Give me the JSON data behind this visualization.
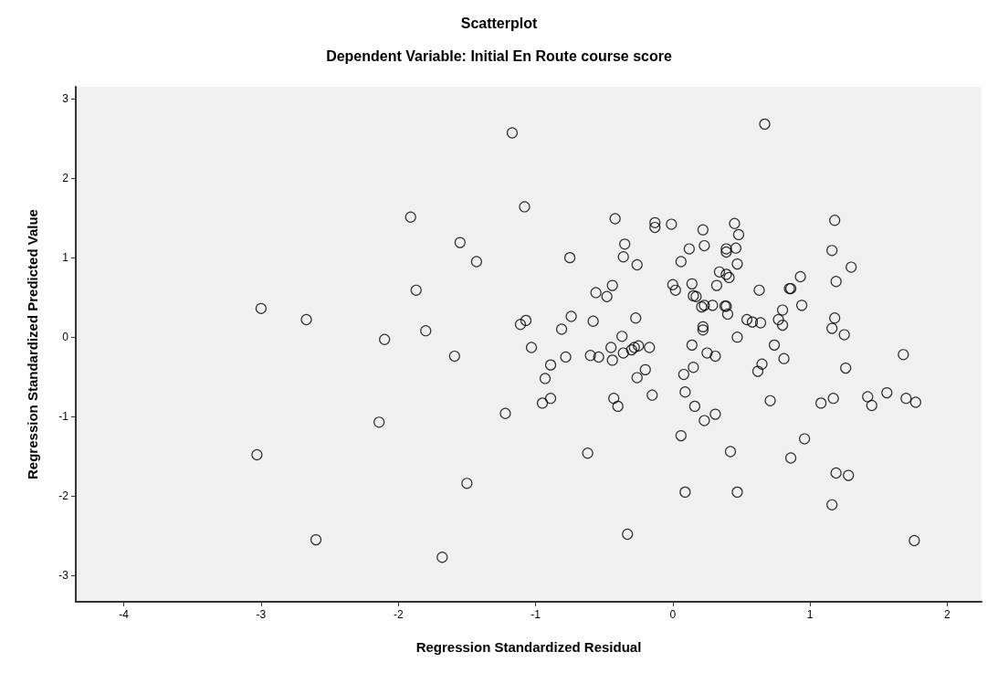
{
  "chart_data": {
    "type": "scatter",
    "title": "Scatterplot",
    "subtitle": "Dependent Variable: Initial En Route course score",
    "xlabel": "Regression Standardized Residual",
    "ylabel": "Regression Standardized Predicted Value",
    "xlim": [
      -4.35,
      2.25
    ],
    "ylim": [
      -3.33,
      3.15
    ],
    "xticks": [
      -4,
      -3,
      -2,
      -1,
      0,
      1,
      2
    ],
    "yticks": [
      -3,
      -2,
      -1,
      0,
      1,
      2,
      3
    ],
    "grid": false,
    "marker": "circle",
    "series": [
      {
        "color": "#000000",
        "x": [
          -3.0,
          -2.67,
          -1.91,
          -1.87,
          -2.1,
          -2.14,
          -3.03,
          -2.6,
          -1.17,
          -1.08,
          -0.42,
          -0.13,
          -0.13,
          -0.01,
          -1.55,
          -1.43,
          -0.35,
          -0.36,
          -0.26,
          -0.75,
          -1.8,
          -1.59,
          -0.44,
          -0.56,
          -0.48,
          -1.11,
          -1.07,
          -0.74,
          -0.81,
          -0.58,
          -0.27,
          -0.37,
          -1.03,
          -0.45,
          -0.6,
          -0.54,
          -0.44,
          -0.36,
          -0.3,
          -0.28,
          -0.25,
          -0.17,
          -0.78,
          -0.89,
          -0.93,
          -0.2,
          -0.26,
          -0.89,
          -0.95,
          -0.43,
          -0.4,
          -0.15,
          -1.22,
          -0.62,
          -1.5,
          -0.33,
          -1.68,
          0.67,
          0.22,
          0.45,
          0.48,
          0.12,
          0.23,
          0.39,
          0.39,
          0.46,
          0.06,
          0.47,
          0.34,
          0.39,
          0.41,
          0.14,
          0.32,
          0.0,
          0.02,
          0.15,
          0.17,
          0.21,
          0.23,
          0.29,
          0.38,
          0.39,
          0.4,
          0.63,
          0.85,
          0.86,
          0.93,
          0.94,
          0.8,
          0.77,
          0.8,
          0.54,
          0.58,
          0.64,
          0.22,
          0.22,
          0.47,
          0.14,
          0.25,
          0.31,
          0.74,
          0.81,
          0.15,
          0.08,
          0.65,
          0.62,
          0.09,
          0.16,
          0.23,
          0.31,
          0.71,
          0.06,
          0.42,
          0.86,
          0.96,
          0.09,
          0.47,
          1.18,
          1.16,
          1.3,
          1.19,
          1.18,
          1.16,
          1.25,
          1.26,
          1.68,
          1.08,
          1.17,
          1.42,
          1.45,
          1.56,
          1.7,
          1.77,
          1.19,
          1.28,
          1.16,
          1.76
        ],
        "values": [
          0.36,
          0.22,
          1.51,
          0.59,
          -0.03,
          -1.07,
          -1.48,
          -2.55,
          2.57,
          1.64,
          1.49,
          1.44,
          1.38,
          1.42,
          1.19,
          0.95,
          1.17,
          1.01,
          0.91,
          1.0,
          0.08,
          -0.24,
          0.65,
          0.56,
          0.51,
          0.16,
          0.21,
          0.26,
          0.1,
          0.2,
          0.24,
          0.01,
          -0.13,
          -0.13,
          -0.23,
          -0.25,
          -0.29,
          -0.2,
          -0.16,
          -0.13,
          -0.11,
          -0.13,
          -0.25,
          -0.35,
          -0.52,
          -0.41,
          -0.51,
          -0.77,
          -0.83,
          -0.77,
          -0.87,
          -0.73,
          -0.96,
          -1.46,
          -1.84,
          -2.48,
          -2.77,
          2.68,
          1.35,
          1.43,
          1.29,
          1.11,
          1.15,
          1.11,
          1.07,
          1.12,
          0.95,
          0.92,
          0.82,
          0.79,
          0.75,
          0.67,
          0.65,
          0.66,
          0.59,
          0.52,
          0.51,
          0.38,
          0.4,
          0.4,
          0.39,
          0.39,
          0.29,
          0.59,
          0.61,
          0.61,
          0.76,
          0.4,
          0.34,
          0.22,
          0.15,
          0.22,
          0.19,
          0.18,
          0.13,
          0.09,
          0.0,
          -0.1,
          -0.2,
          -0.24,
          -0.1,
          -0.27,
          -0.38,
          -0.47,
          -0.34,
          -0.43,
          -0.69,
          -0.87,
          -1.05,
          -0.97,
          -0.8,
          -1.24,
          -1.44,
          -1.52,
          -1.28,
          -1.95,
          -1.95,
          1.47,
          1.09,
          0.88,
          0.7,
          0.24,
          0.11,
          0.03,
          -0.39,
          -0.22,
          -0.83,
          -0.77,
          -0.75,
          -0.86,
          -0.7,
          -0.77,
          -0.82,
          -1.71,
          -1.74,
          -2.11,
          -2.56
        ]
      }
    ]
  }
}
